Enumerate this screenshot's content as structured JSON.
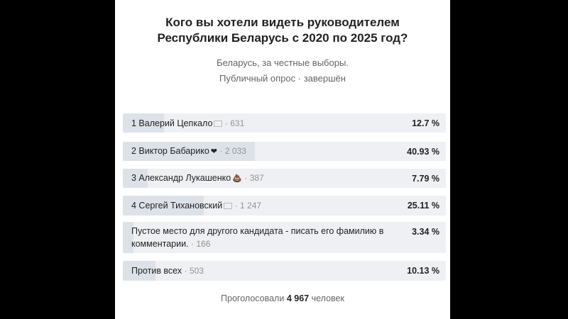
{
  "poll": {
    "title_line1": "Кого вы хотели видеть руководителем",
    "title_line2": "Республики Беларусь с 2020 по 2025 год?",
    "subtitle_line1": "Беларусь, за честные выборы.",
    "subtitle_line2": "Публичный опрос · завершён",
    "options": [
      {
        "label": "1 Валерий Цепкало",
        "icon": "flag-icon",
        "count": "· 631",
        "percent": "12.7 %",
        "share": 12.7
      },
      {
        "label": "2 Виктор Бабарико",
        "icon": "heart-icon",
        "count": "· 2 033",
        "percent": "40.93 %",
        "share": 40.93
      },
      {
        "label": "3 Александр Лукашенко",
        "icon": "poop-icon",
        "count": "· 387",
        "percent": "7.79 %",
        "share": 7.79
      },
      {
        "label": "4 Сергей Тихановский",
        "icon": "flag-icon",
        "count": "· 1 247",
        "percent": "25.11 %",
        "share": 25.11
      },
      {
        "label": "Пустое место для другого кандидата - писать его фамилию в комментарии.",
        "icon": "",
        "count": "· 166",
        "percent": "3.34 %",
        "share": 3.34
      },
      {
        "label": "Против всех",
        "icon": "",
        "count": "· 503",
        "percent": "10.13 %",
        "share": 10.13
      }
    ],
    "total_prefix": "Проголосовали",
    "total_count": "4 967",
    "total_suffix": "человек"
  }
}
